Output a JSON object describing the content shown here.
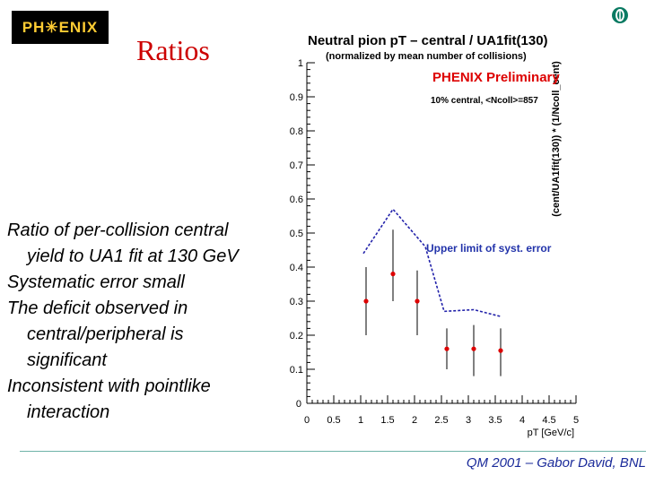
{
  "logo": {
    "text": "PH✳ENIX"
  },
  "slide": {
    "title": "Ratios",
    "bullets": [
      [
        "Ratio of per-collision central",
        "yield to UA1 fit at 130 GeV"
      ],
      [
        "Systematic error small"
      ],
      [
        "The deficit observed in",
        "central/peripheral is",
        "significant"
      ],
      [
        "Inconsistent with pointlike",
        "interaction"
      ]
    ],
    "footer": "QM 2001 – Gabor David, BNL"
  },
  "chart_data": {
    "type": "scatter",
    "title": "Neutral pion pT – central / UA1fit(130)",
    "subtitle": "(normalized by mean number of collisions)",
    "xlabel": "pT [GeV/c]",
    "ylabel": "(cent/UA1fit(130)) * (1/Ncoll_cent)",
    "xlim": [
      0,
      5
    ],
    "ylim": [
      0,
      1
    ],
    "xticks": [
      "0",
      "0.5",
      "1",
      "1.5",
      "2",
      "2.5",
      "3",
      "3.5",
      "4",
      "4.5",
      "5"
    ],
    "yticks": [
      "0.1",
      "0.2",
      "0.3",
      "0.4",
      "0.5",
      "0.6",
      "0.7",
      "0.8",
      "0.9",
      "1"
    ],
    "annotations": [
      "PHENIX Preliminary",
      "10% central, <Ncoll>=857",
      "Upper limit of syst. error"
    ],
    "series": [
      {
        "points": [
          {
            "x": 1.1,
            "y": 0.3,
            "ylo": 0.2,
            "yhi": 0.4
          },
          {
            "x": 1.6,
            "y": 0.38,
            "ylo": 0.3,
            "yhi": 0.51
          },
          {
            "x": 2.05,
            "y": 0.3,
            "ylo": 0.2,
            "yhi": 0.39
          },
          {
            "x": 2.6,
            "y": 0.16,
            "ylo": 0.1,
            "yhi": 0.22
          },
          {
            "x": 3.1,
            "y": 0.16,
            "ylo": 0.08,
            "yhi": 0.23
          },
          {
            "x": 3.6,
            "y": 0.155,
            "ylo": 0.08,
            "yhi": 0.22
          }
        ]
      },
      {
        "line": [
          {
            "x": 1.05,
            "y": 0.44
          },
          {
            "x": 1.6,
            "y": 0.57
          },
          {
            "x": 2.2,
            "y": 0.46
          },
          {
            "x": 2.55,
            "y": 0.27
          },
          {
            "x": 3.1,
            "y": 0.275
          },
          {
            "x": 3.6,
            "y": 0.255
          }
        ]
      }
    ],
    "colors": {
      "points": "#dd0000",
      "limit": "#2222aa",
      "annotation_red": "#dd0000",
      "annotation_blue": "#2233aa"
    }
  }
}
